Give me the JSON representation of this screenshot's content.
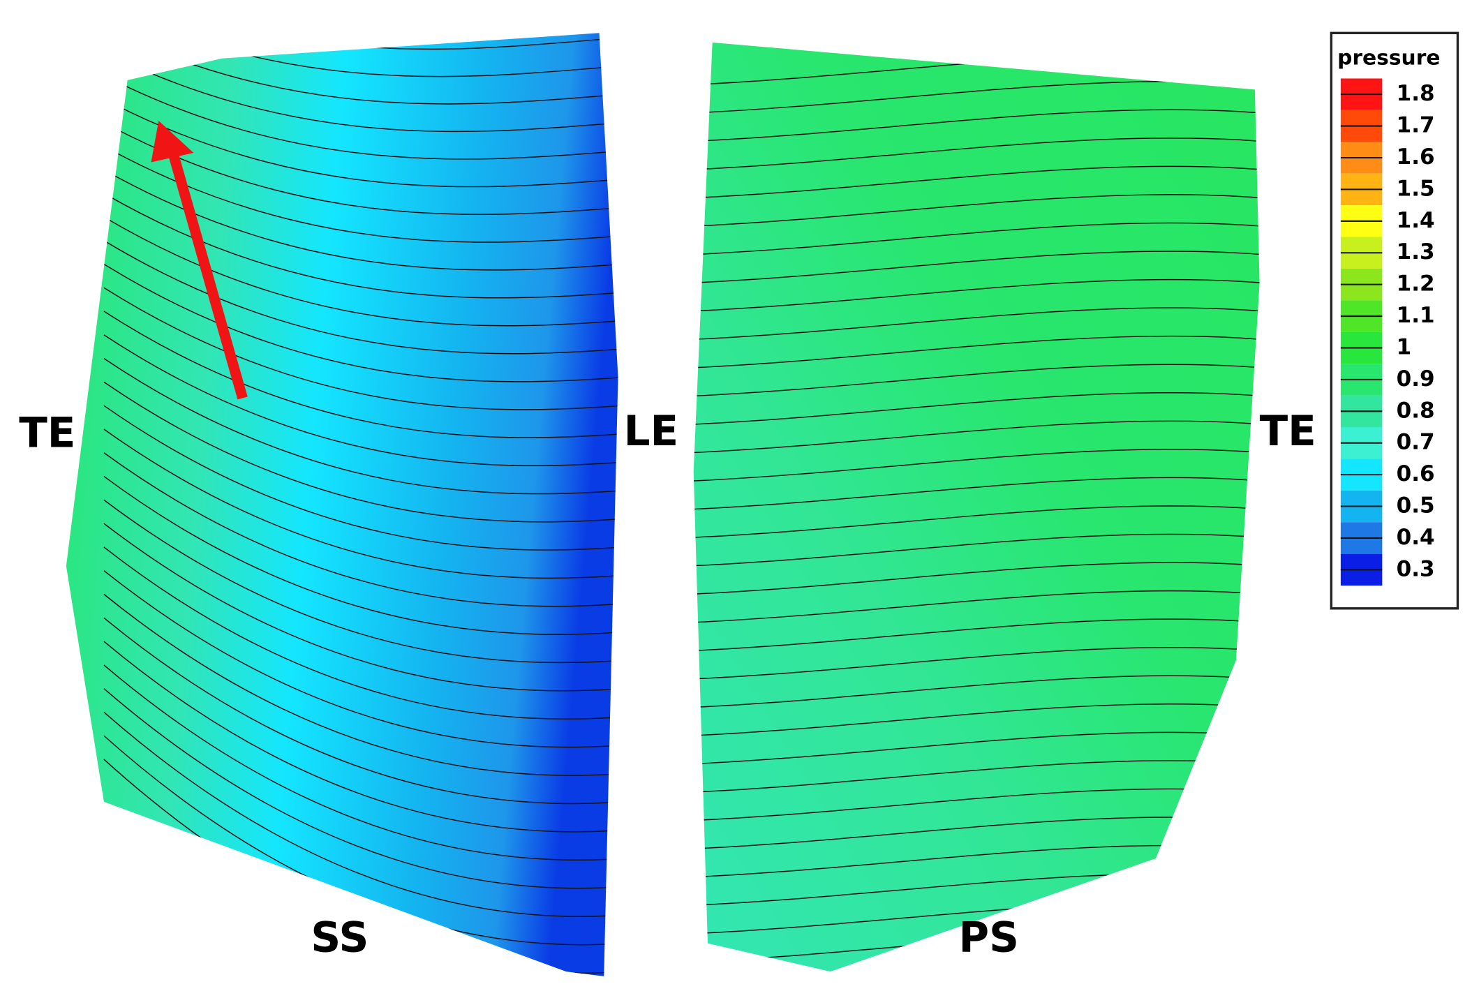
{
  "labels": {
    "te_left": "TE",
    "le": "LE",
    "te_right": "TE",
    "ss": "SS",
    "ps": "PS"
  },
  "legend": {
    "title": "pressure",
    "levels": [
      {
        "value": 1.8,
        "color": "#ff1414"
      },
      {
        "value": 1.7,
        "color": "#ff4a0a"
      },
      {
        "value": 1.6,
        "color": "#ff8c14"
      },
      {
        "value": 1.5,
        "color": "#ffb414"
      },
      {
        "value": 1.4,
        "color": "#ffff14"
      },
      {
        "value": 1.3,
        "color": "#c8f01e"
      },
      {
        "value": 1.2,
        "color": "#8ce61e"
      },
      {
        "value": 1.1,
        "color": "#50e628"
      },
      {
        "value": 1,
        "color": "#28e63c"
      },
      {
        "value": 0.9,
        "color": "#28e66e"
      },
      {
        "value": 0.8,
        "color": "#32e6a0"
      },
      {
        "value": 0.7,
        "color": "#3cf0d2"
      },
      {
        "value": 0.6,
        "color": "#14e6ff"
      },
      {
        "value": 0.5,
        "color": "#14b4f0"
      },
      {
        "value": 0.4,
        "color": "#1e78e6"
      },
      {
        "value": 0.3,
        "color": "#0a1ee6"
      }
    ]
  }
}
